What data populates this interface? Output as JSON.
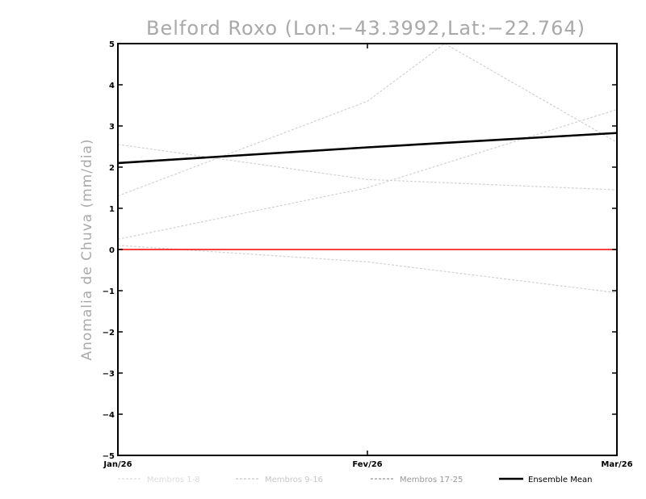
{
  "chart_data": {
    "type": "line",
    "title": "Belford Roxo (Lon:−43.3992,Lat:−22.764)",
    "xlabel": "",
    "ylabel": "Anomalia de Chuva (mm/dia)",
    "categories": [
      "Jan/26",
      "Fev/26",
      "Mar/26"
    ],
    "ylim": [
      -5,
      5
    ],
    "yticks": [
      "−5",
      "−4",
      "−3",
      "−2",
      "−1",
      "0",
      "1",
      "2",
      "3",
      "4",
      "5"
    ],
    "grid": false,
    "reference_line": {
      "y": 0,
      "color": "#ff0000"
    },
    "members": [
      {
        "group": 0,
        "x": [
          0,
          1,
          1.31,
          2
        ],
        "values": [
          1.3,
          3.6,
          5.0,
          2.6
        ]
      },
      {
        "group": 1,
        "x": [
          0,
          1,
          2
        ],
        "values": [
          2.55,
          1.7,
          1.45
        ]
      },
      {
        "group": 1,
        "x": [
          0,
          1,
          2
        ],
        "values": [
          0.25,
          1.5,
          3.4
        ]
      },
      {
        "group": 2,
        "x": [
          0,
          1,
          2
        ],
        "values": [
          0.1,
          -0.3,
          -1.05
        ]
      }
    ],
    "ensemble_mean": {
      "name": "Ensemble Mean",
      "x": [
        0,
        1,
        2
      ],
      "values": [
        2.1,
        2.48,
        2.83
      ],
      "color": "#000000"
    },
    "legend": {
      "placement": "bottom",
      "items": [
        {
          "label": "Membros 1-8",
          "color": "#dddddd",
          "style": "dashed"
        },
        {
          "label": "Membros 9-16",
          "color": "#c8c8c8",
          "style": "dashed"
        },
        {
          "label": "Membros 17-25",
          "color": "#999999",
          "style": "dashed"
        },
        {
          "label": "Ensemble Mean",
          "color": "#000000",
          "style": "solid"
        }
      ]
    },
    "member_colors": [
      "#d2d2d2",
      "#d2d2d2",
      "#d2d2d2"
    ]
  }
}
